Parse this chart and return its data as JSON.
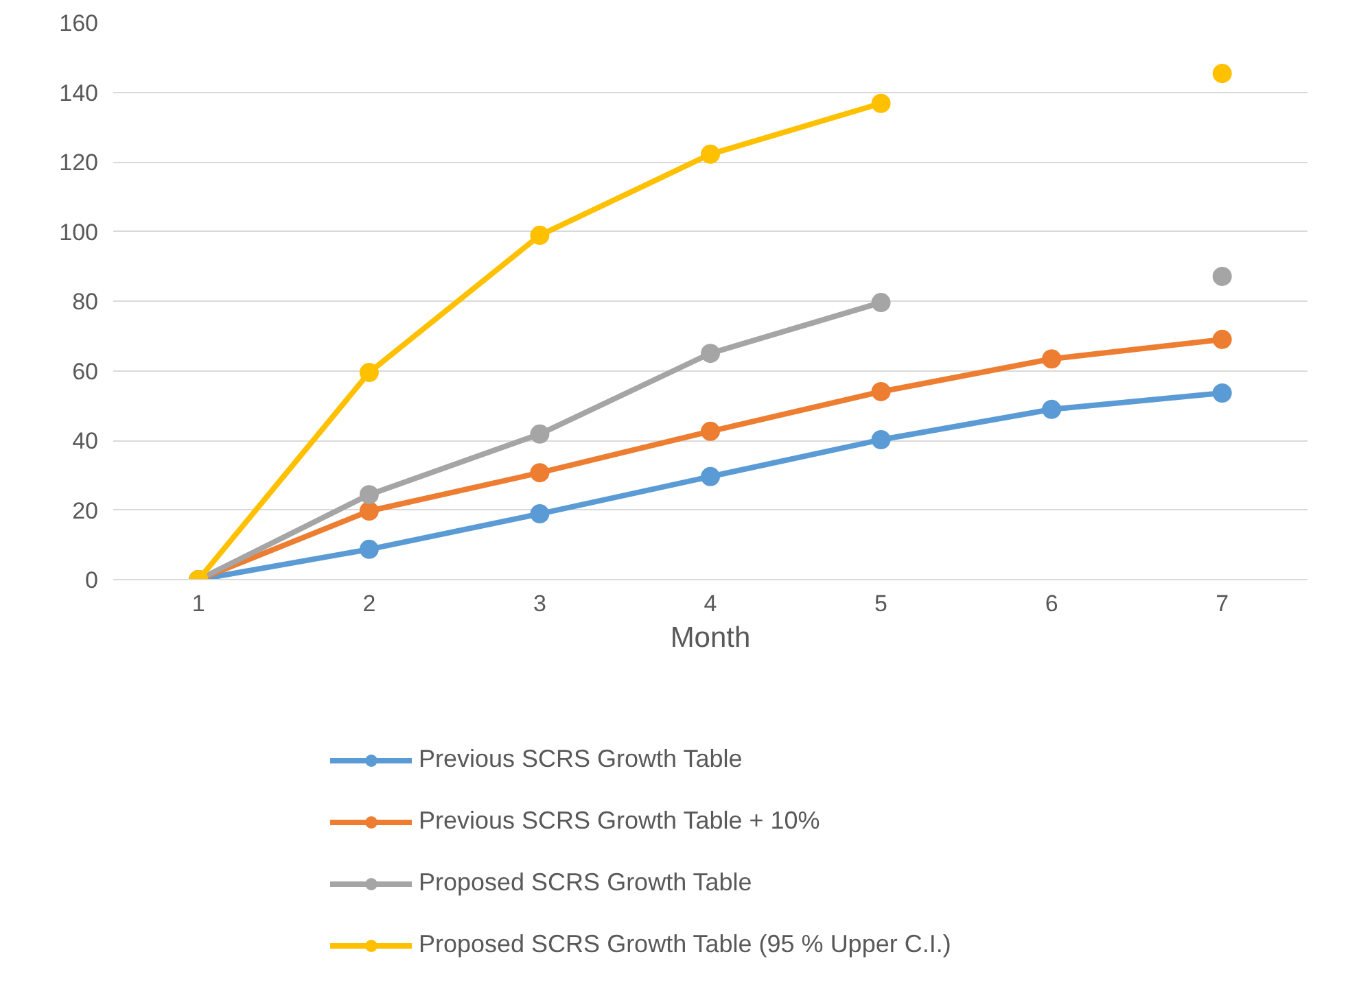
{
  "chart_data": {
    "type": "line",
    "xlabel": "Month",
    "categories": [
      "1",
      "2",
      "3",
      "4",
      "5",
      "6",
      "7"
    ],
    "ylim": [
      0,
      160
    ],
    "yticks": [
      0,
      20,
      40,
      60,
      80,
      100,
      120,
      140,
      160
    ],
    "grid": "y",
    "legend": "bottom",
    "marker": "circle",
    "line_style": "solid",
    "series": [
      {
        "name": "Previous SCRS Growth Table",
        "color": "#5b9bd5",
        "values": [
          0,
          8.7,
          18.9,
          29.6,
          40.2,
          48.9,
          53.6
        ]
      },
      {
        "name": "Previous SCRS Growth Table + 10%",
        "color": "#ed7d31",
        "values": [
          0,
          19.7,
          30.7,
          42.6,
          54,
          63.4,
          69
        ]
      },
      {
        "name": "Proposed SCRS Growth Table",
        "color": "#a5a5a5",
        "values": [
          0,
          24.4,
          41.8,
          65,
          79.6,
          null,
          87.1
        ]
      },
      {
        "name": "Proposed SCRS Growth Table (95 % Upper C.I.)",
        "color": "#ffc000",
        "values": [
          0,
          59.5,
          98.9,
          122.2,
          136.8,
          null,
          145.4
        ]
      }
    ]
  }
}
